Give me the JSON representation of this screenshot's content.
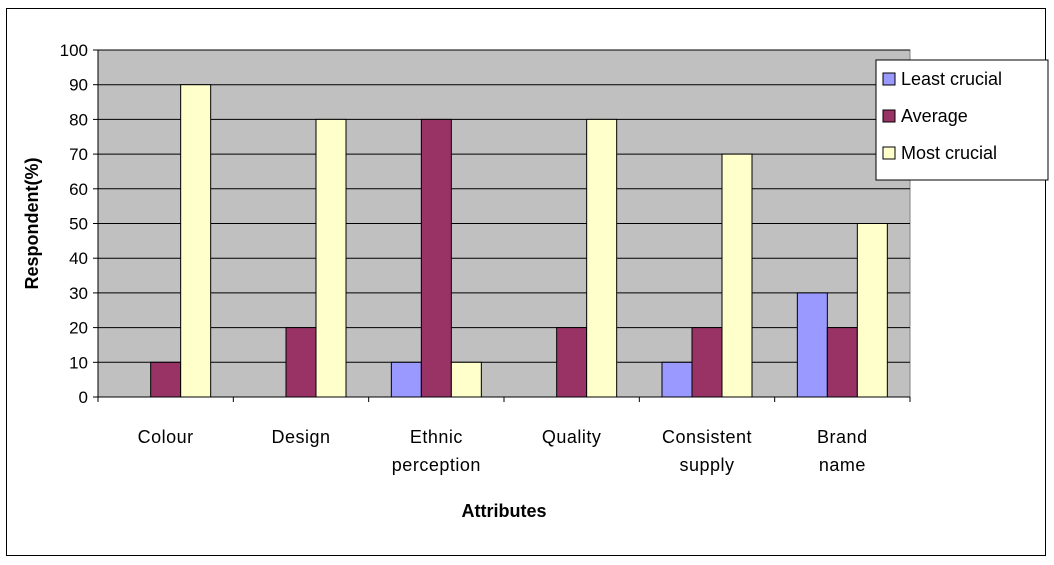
{
  "chart_data": {
    "type": "bar",
    "categories": [
      [
        "Colour"
      ],
      [
        "Design"
      ],
      [
        "Ethnic",
        "perception"
      ],
      [
        "Quality"
      ],
      [
        "Consistent",
        "supply"
      ],
      [
        "Brand",
        "name"
      ]
    ],
    "series": [
      {
        "name": "Least crucial",
        "values": [
          0,
          0,
          10,
          0,
          10,
          30
        ],
        "color": "#9999FF"
      },
      {
        "name": "Average",
        "values": [
          10,
          20,
          80,
          20,
          20,
          20
        ],
        "color": "#993366"
      },
      {
        "name": "Most crucial",
        "values": [
          90,
          80,
          10,
          80,
          70,
          50
        ],
        "color": "#FFFFCC"
      }
    ],
    "xlabel": "Attributes",
    "ylabel": "Respondent(%)",
    "ylim": [
      0,
      100
    ],
    "yticks": [
      0,
      10,
      20,
      30,
      40,
      50,
      60,
      70,
      80,
      90,
      100
    ],
    "grid": true,
    "plot_background": "#C0C0C0",
    "legend_position": "right"
  }
}
